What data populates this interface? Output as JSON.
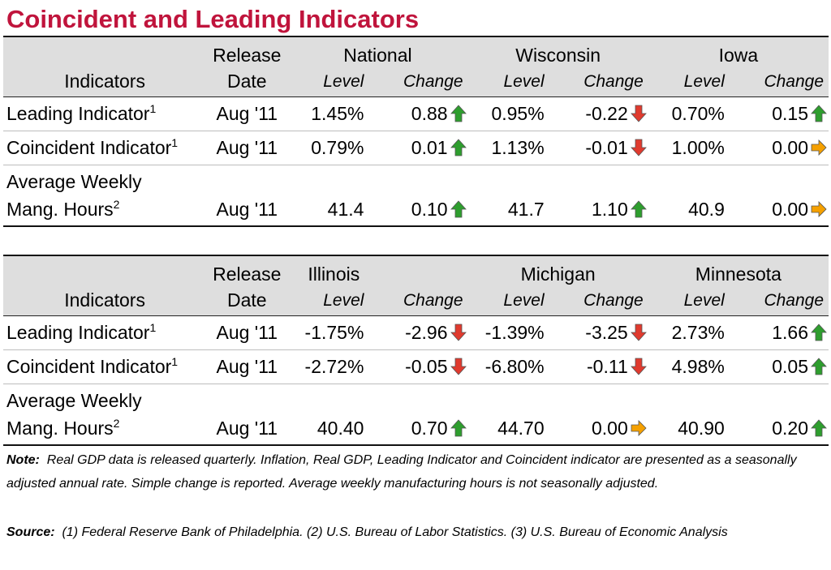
{
  "title": "Coincident and Leading Indicators",
  "headers": {
    "release": "Release",
    "date": "Date",
    "indicators": "Indicators",
    "level": "Level",
    "change": "Change"
  },
  "colors": {
    "title": "#c0143c",
    "up": "#2e9e2e",
    "down": "#e03a2e",
    "flat": "#f5a000"
  },
  "tables": [
    {
      "regions": [
        "National",
        "Wisconsin",
        "Iowa"
      ],
      "rows": [
        {
          "name": "Leading Indicator",
          "sup": "1",
          "date": "Aug '11",
          "cells": [
            {
              "level": "1.45%",
              "change": "0.88",
              "dir": "up"
            },
            {
              "level": "0.95%",
              "change": "-0.22",
              "dir": "down"
            },
            {
              "level": "0.70%",
              "change": "0.15",
              "dir": "up"
            }
          ]
        },
        {
          "name": "Coincident Indicator",
          "sup": "1",
          "date": "Aug '11",
          "cells": [
            {
              "level": "0.79%",
              "change": "0.01",
              "dir": "up"
            },
            {
              "level": "1.13%",
              "change": "-0.01",
              "dir": "down"
            },
            {
              "level": "1.00%",
              "change": "0.00",
              "dir": "flat"
            }
          ]
        },
        {
          "name_line1": "Average Weekly",
          "name": "Mang. Hours",
          "sup": "2",
          "date": "Aug '11",
          "cells": [
            {
              "level": "41.4",
              "change": "0.10",
              "dir": "up"
            },
            {
              "level": "41.7",
              "change": "1.10",
              "dir": "up"
            },
            {
              "level": "40.9",
              "change": "0.00",
              "dir": "flat"
            }
          ]
        }
      ]
    },
    {
      "regions": [
        "Illinois",
        "Michigan",
        "Minnesota"
      ],
      "rows": [
        {
          "name": "Leading Indicator",
          "sup": "1",
          "date": "Aug '11",
          "cells": [
            {
              "level": "-1.75%",
              "change": "-2.96",
              "dir": "down"
            },
            {
              "level": "-1.39%",
              "change": "-3.25",
              "dir": "down"
            },
            {
              "level": "2.73%",
              "change": "1.66",
              "dir": "up"
            }
          ]
        },
        {
          "name": "Coincident Indicator",
          "sup": "1",
          "date": "Aug '11",
          "cells": [
            {
              "level": "-2.72%",
              "change": "-0.05",
              "dir": "down"
            },
            {
              "level": "-6.80%",
              "change": "-0.11",
              "dir": "down"
            },
            {
              "level": "4.98%",
              "change": "0.05",
              "dir": "up"
            }
          ]
        },
        {
          "name_line1": "Average Weekly",
          "name": "Mang. Hours",
          "sup": "2",
          "date": "Aug '11",
          "cells": [
            {
              "level": "40.40",
              "change": "0.70",
              "dir": "up"
            },
            {
              "level": "44.70",
              "change": "0.00",
              "dir": "flat"
            },
            {
              "level": "40.90",
              "change": "0.20",
              "dir": "up"
            }
          ]
        }
      ]
    }
  ],
  "note": {
    "label": "Note:",
    "text": "Real GDP data is released quarterly. Inflation, Real GDP, Leading Indicator and Coincident indicator are presented as a seasonally adjusted annual rate. Simple change is reported. Average weekly manufacturing hours is not seasonally adjusted."
  },
  "source": {
    "label": "Source:",
    "text": "(1) Federal Reserve Bank of Philadelphia. (2) U.S. Bureau of Labor Statistics. (3) U.S. Bureau of Economic Analysis"
  }
}
